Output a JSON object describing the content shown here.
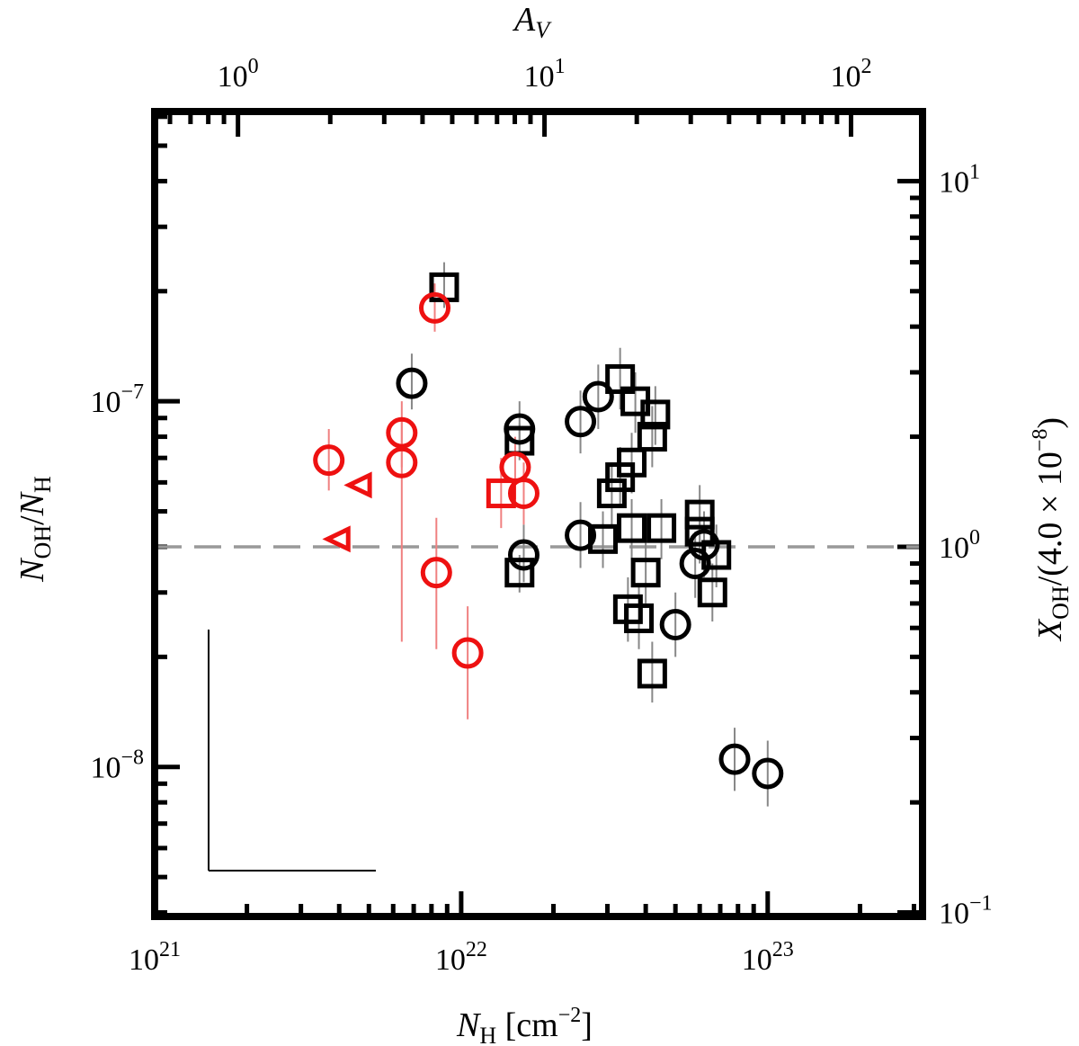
{
  "chart_data": {
    "type": "scatter",
    "xscale": "log",
    "yscale": "log",
    "xlim": [
      1e+21,
      3.2e+23
    ],
    "ylim": [
      3.9e-09,
      6.2e-07
    ],
    "xlabel": "N_H [cm^-2]",
    "ylabel": "N_OH / N_H",
    "top_xlabel": "A_V",
    "right_ylabel": "X_OH / (4.0 × 10^-8)",
    "reference_line": {
      "y": 4e-08,
      "style": "dashed",
      "color": "#999999"
    },
    "colors": {
      "red": "#ee1111",
      "black": "#000000",
      "errbar_red": "#f08080",
      "errbar_black": "#888888"
    },
    "bottom_ticks": [
      {
        "value": 1e+21,
        "base": "10",
        "exp": "21"
      },
      {
        "value": 1e+22,
        "base": "10",
        "exp": "22"
      },
      {
        "value": 1e+23,
        "base": "10",
        "exp": "23"
      }
    ],
    "left_ticks": [
      {
        "value": 1e-07,
        "base": "10",
        "exp": "-7"
      },
      {
        "value": 1e-08,
        "base": "10",
        "exp": "-8"
      }
    ],
    "top_ticks": [
      {
        "value": 1,
        "base": "10",
        "exp": "0"
      },
      {
        "value": 10,
        "base": "10",
        "exp": "1"
      },
      {
        "value": 100,
        "base": "10",
        "exp": "2"
      }
    ],
    "right_ticks": [
      {
        "value": 10,
        "base": "10",
        "exp": "1"
      },
      {
        "value": 1,
        "base": "10",
        "exp": "0"
      },
      {
        "value": 0.1,
        "base": "10",
        "exp": "-1"
      }
    ],
    "series": [
      {
        "marker": "square",
        "color": "black",
        "points": [
          {
            "x": 8.8e+21,
            "y": 2.05e-07,
            "ylo": 1.8e-07,
            "yhi": 2.4e-07
          },
          {
            "x": 1.55e+22,
            "y": 7.8e-08,
            "ylo": 6.9e-08,
            "yhi": 8.7e-08
          },
          {
            "x": 1.55e+22,
            "y": 3.4e-08,
            "ylo": 3e-08,
            "yhi": 3.8e-08
          },
          {
            "x": 3.3e+22,
            "y": 1.15e-07,
            "ylo": 9.5e-08,
            "yhi": 1.4e-07
          },
          {
            "x": 3.7e+22,
            "y": 1e-07,
            "ylo": 8.2e-08,
            "yhi": 1.2e-07
          },
          {
            "x": 4.3e+22,
            "y": 9.2e-08,
            "ylo": 7.6e-08,
            "yhi": 1.1e-07
          },
          {
            "x": 4.2e+22,
            "y": 8e-08,
            "ylo": 6.6e-08,
            "yhi": 9.7e-08
          },
          {
            "x": 3.6e+22,
            "y": 6.8e-08,
            "ylo": 5.6e-08,
            "yhi": 8.2e-08
          },
          {
            "x": 3.3e+22,
            "y": 6.2e-08,
            "ylo": 5.1e-08,
            "yhi": 7.5e-08
          },
          {
            "x": 3.1e+22,
            "y": 5.6e-08,
            "ylo": 4.6e-08,
            "yhi": 6.8e-08
          },
          {
            "x": 2.9e+22,
            "y": 4.2e-08,
            "ylo": 3.5e-08,
            "yhi": 5e-08
          },
          {
            "x": 3.6e+22,
            "y": 4.5e-08,
            "ylo": 3.7e-08,
            "yhi": 5.4e-08
          },
          {
            "x": 4.5e+22,
            "y": 4.5e-08,
            "ylo": 3.7e-08,
            "yhi": 5.4e-08
          },
          {
            "x": 4e+22,
            "y": 3.4e-08,
            "ylo": 2.8e-08,
            "yhi": 4.1e-08
          },
          {
            "x": 3.5e+22,
            "y": 2.7e-08,
            "ylo": 2.2e-08,
            "yhi": 3.3e-08
          },
          {
            "x": 3.8e+22,
            "y": 2.55e-08,
            "ylo": 2.1e-08,
            "yhi": 3.1e-08
          },
          {
            "x": 4.2e+22,
            "y": 1.8e-08,
            "ylo": 1.5e-08,
            "yhi": 2.2e-08
          },
          {
            "x": 6e+22,
            "y": 4.9e-08,
            "ylo": 4.1e-08,
            "yhi": 5.9e-08
          },
          {
            "x": 6e+22,
            "y": 4.4e-08,
            "ylo": 3.6e-08,
            "yhi": 5.3e-08
          },
          {
            "x": 6.8e+22,
            "y": 3.8e-08,
            "ylo": 3.1e-08,
            "yhi": 4.6e-08
          },
          {
            "x": 6.6e+22,
            "y": 3e-08,
            "ylo": 2.5e-08,
            "yhi": 3.6e-08
          }
        ]
      },
      {
        "marker": "circle",
        "color": "black",
        "points": [
          {
            "x": 6.9e+21,
            "y": 1.12e-07,
            "ylo": 9.5e-08,
            "yhi": 1.35e-07
          },
          {
            "x": 1.55e+22,
            "y": 8.4e-08,
            "ylo": 7.1e-08,
            "yhi": 1e-07
          },
          {
            "x": 1.6e+22,
            "y": 3.8e-08,
            "ylo": 3.2e-08,
            "yhi": 4.6e-08
          },
          {
            "x": 2.45e+22,
            "y": 8.8e-08,
            "ylo": 7.2e-08,
            "yhi": 1.07e-07
          },
          {
            "x": 2.8e+22,
            "y": 1.03e-07,
            "ylo": 8.4e-08,
            "yhi": 1.26e-07
          },
          {
            "x": 2.45e+22,
            "y": 4.3e-08,
            "ylo": 3.5e-08,
            "yhi": 5.3e-08
          },
          {
            "x": 5e+22,
            "y": 2.45e-08,
            "ylo": 2e-08,
            "yhi": 3e-08
          },
          {
            "x": 5.8e+22,
            "y": 3.6e-08,
            "ylo": 2.9e-08,
            "yhi": 4.4e-08
          },
          {
            "x": 6.2e+22,
            "y": 4.05e-08,
            "ylo": 3.3e-08,
            "yhi": 5e-08
          },
          {
            "x": 7.8e+22,
            "y": 1.05e-08,
            "ylo": 8.6e-09,
            "yhi": 1.28e-08
          },
          {
            "x": 1e+23,
            "y": 9.6e-09,
            "ylo": 7.8e-09,
            "yhi": 1.18e-08
          }
        ]
      },
      {
        "marker": "circle",
        "color": "red",
        "points": [
          {
            "x": 3.7e+21,
            "y": 6.9e-08,
            "ylo": 5.7e-08,
            "yhi": 8.4e-08
          },
          {
            "x": 6.4e+21,
            "y": 8.2e-08,
            "ylo": 6.6e-08,
            "yhi": 1e-07
          },
          {
            "x": 6.4e+21,
            "y": 6.8e-08,
            "ylo": 2.2e-08,
            "yhi": 8.8e-08
          },
          {
            "x": 8.2e+21,
            "y": 1.8e-07,
            "ylo": 1.55e-07,
            "yhi": 2.1e-07
          },
          {
            "x": 8.3e+21,
            "y": 3.4e-08,
            "ylo": 2.1e-08,
            "yhi": 4.8e-08
          },
          {
            "x": 1.05e+22,
            "y": 2.05e-08,
            "ylo": 1.35e-08,
            "yhi": 2.75e-08
          },
          {
            "x": 1.5e+22,
            "y": 6.6e-08,
            "ylo": 5.4e-08,
            "yhi": 8e-08
          },
          {
            "x": 1.6e+22,
            "y": 5.6e-08,
            "ylo": 4.6e-08,
            "yhi": 6.8e-08
          }
        ]
      },
      {
        "marker": "square",
        "color": "red",
        "points": [
          {
            "x": 1.35e+22,
            "y": 5.6e-08,
            "ylo": 4.5e-08,
            "yhi": 7e-08
          }
        ]
      },
      {
        "marker": "triangle-left",
        "color": "red",
        "points": [
          {
            "x": 4.7e+21,
            "y": 5.9e-08
          },
          {
            "x": 4e+21,
            "y": 4.2e-08
          }
        ]
      }
    ]
  }
}
